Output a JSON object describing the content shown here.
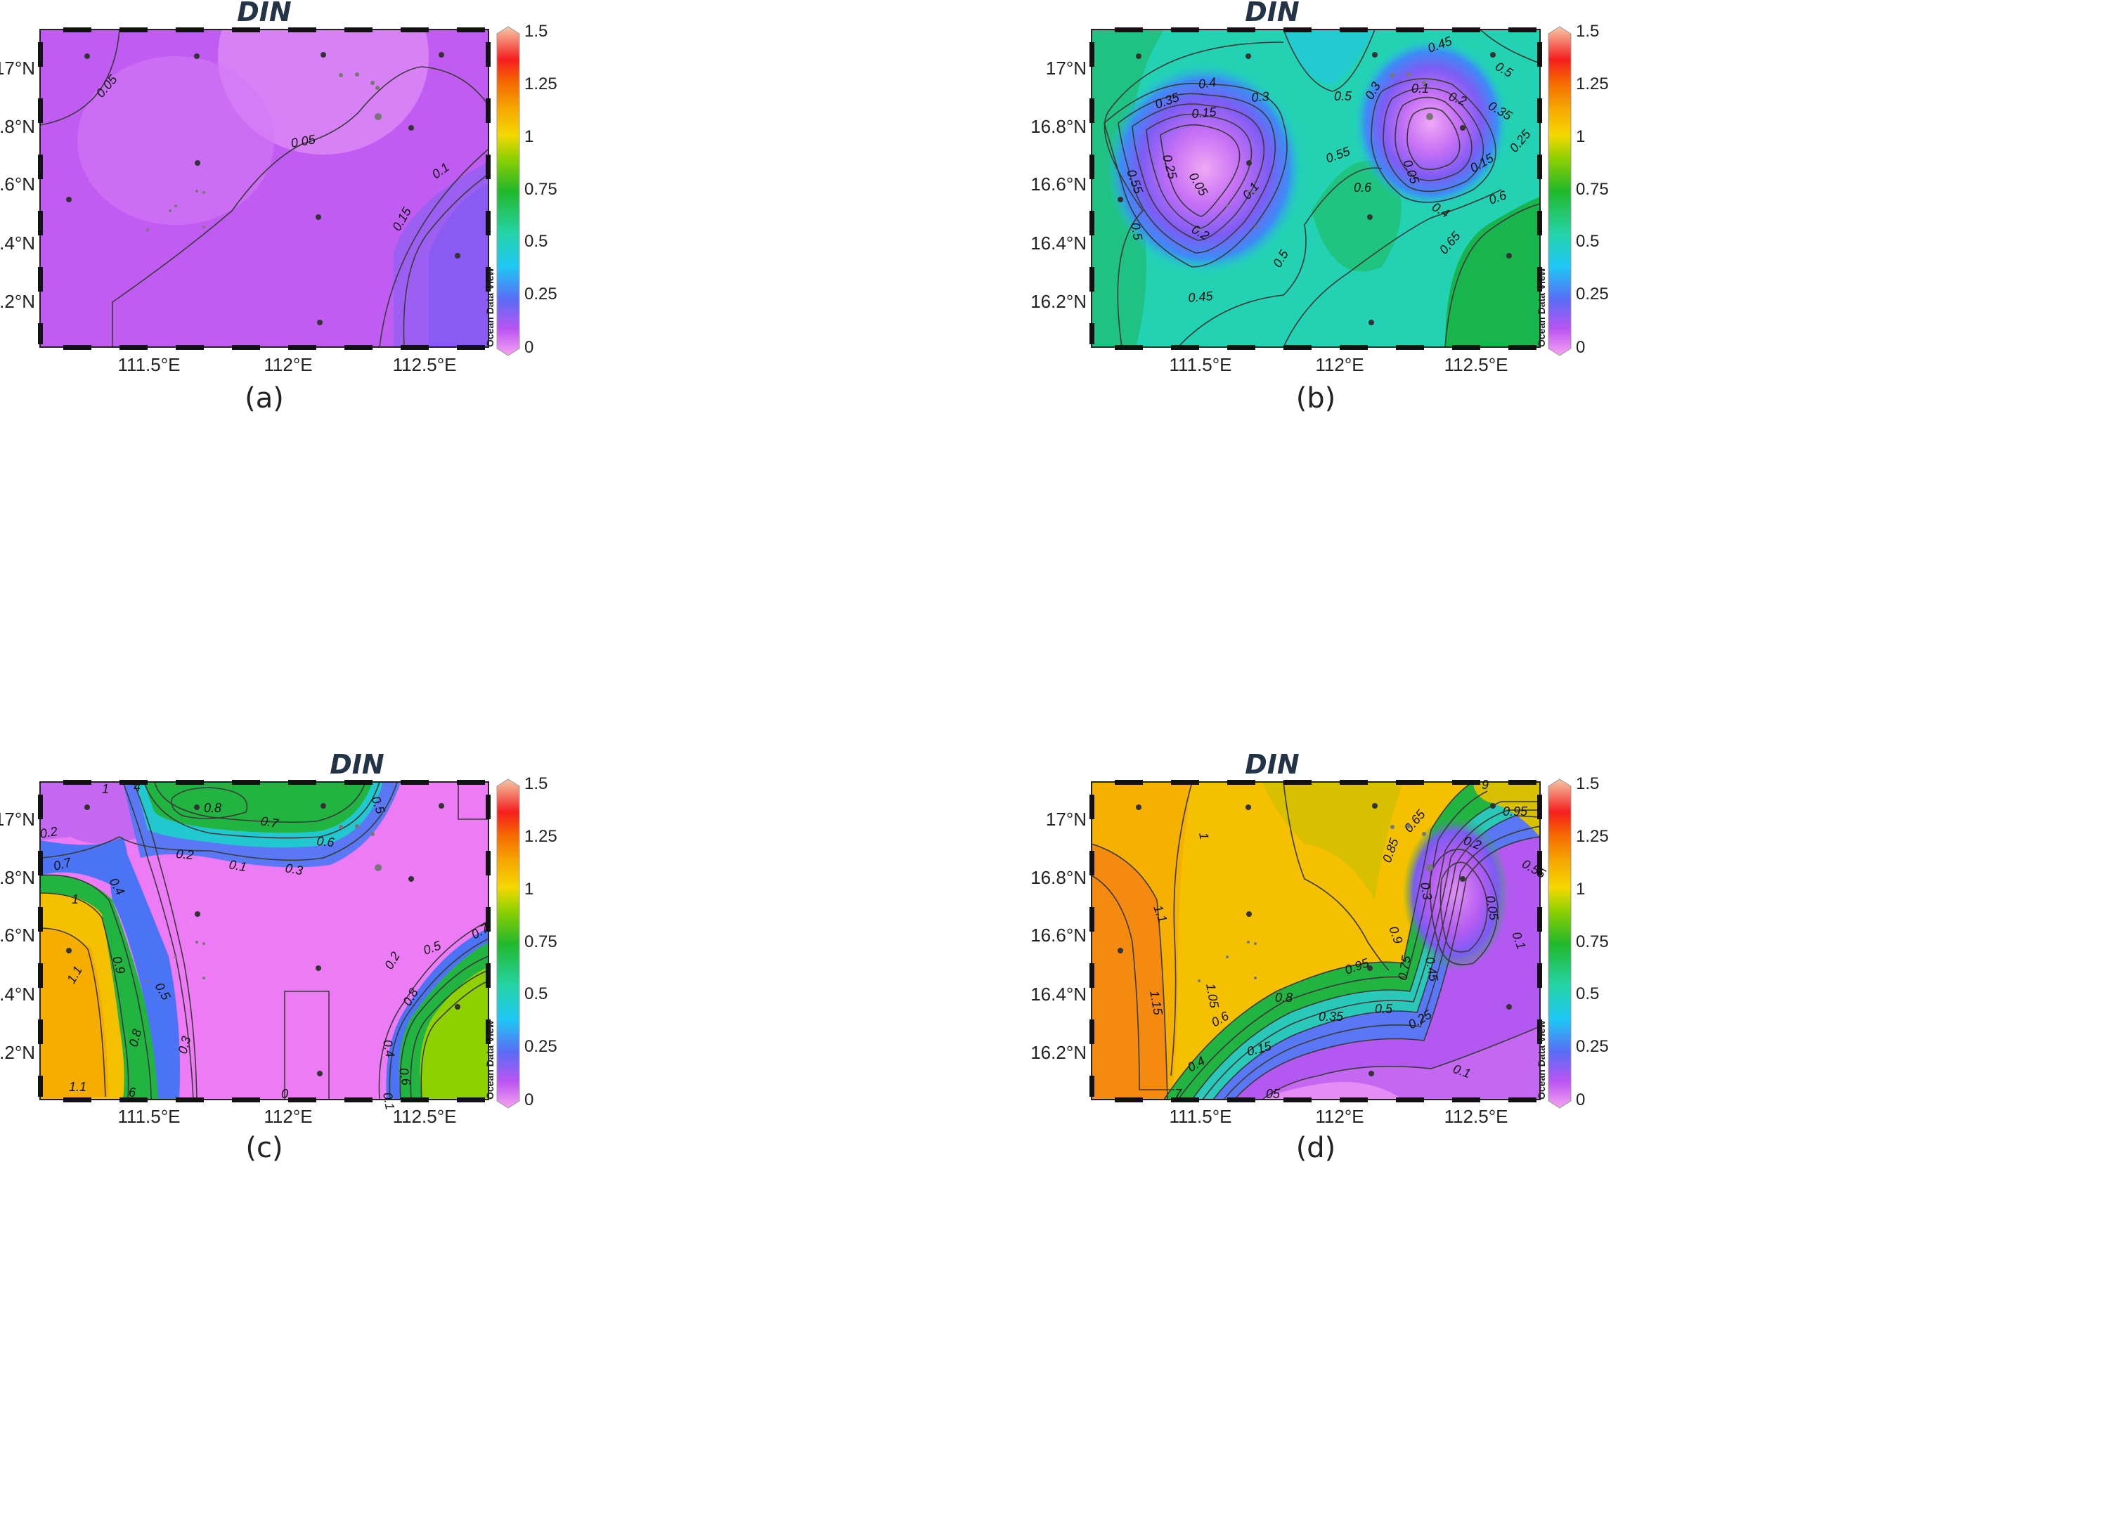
{
  "panels": [
    {
      "id": "a",
      "title": "DIN",
      "caption": "(a)",
      "lat_labels": [
        "17°N",
        "16.8°N",
        "16.6°N",
        "16.4°N",
        "16.2°N"
      ],
      "lon_labels": [
        "111.5°E",
        "112°E",
        "112.5°E"
      ],
      "colorbar_ticks": [
        "1.5",
        "1.25",
        "1",
        "0.75",
        "0.5",
        "0.25",
        "0"
      ],
      "watermark": "Ocean Data View",
      "contour_labels": [
        "0.05",
        "0.05",
        "0.1",
        "0.15"
      ],
      "base_color": "#c05cf2"
    },
    {
      "id": "b",
      "title": "DIN",
      "caption": "(b)",
      "lat_labels": [
        "17°N",
        "16.8°N",
        "16.6°N",
        "16.4°N",
        "16.2°N"
      ],
      "lon_labels": [
        "111.5°E",
        "112°E",
        "112.5°E"
      ],
      "colorbar_ticks": [
        "1.5",
        "1.25",
        "1",
        "0.75",
        "0.5",
        "0.25",
        "0"
      ],
      "watermark": "Ocean Data View",
      "contour_labels": [
        "0.45",
        "0.5",
        "0.4",
        "0.3",
        "0.35",
        "0.15",
        "0.25",
        "0.55",
        "0.05",
        "0.1",
        "0.2",
        "0.5",
        "0.45",
        "0.5",
        "0.55",
        "0.6",
        "0.5",
        "0.1",
        "0.2",
        "0.35",
        "0.3",
        "0.05",
        "0.25",
        "0.15",
        "0.4",
        "0.6",
        "0.65"
      ],
      "base_color": "#22d2b2"
    },
    {
      "id": "c",
      "title": "DIN",
      "caption": "(c)",
      "lat_labels": [
        "17°N",
        "16.8°N",
        "16.6°N",
        "16.4°N",
        "16.2°N"
      ],
      "lon_labels": [
        "111.5°E",
        "112°E",
        "112.5°E"
      ],
      "colorbar_ticks": [
        "1.5",
        "1.25",
        "1",
        "0.75",
        "0.5",
        "0.25",
        "0"
      ],
      "watermark": "Ocean Data View",
      "contour_labels": [
        "1",
        "4",
        "0.8",
        "0.7",
        "0.5",
        "0.6",
        "0.2",
        "0.2",
        "0.1",
        "0.3",
        "0.7",
        "0.4",
        "1",
        "1.1",
        "0.9",
        "0.5",
        "0.8",
        "0.3",
        "0.2",
        "0.5",
        "0.8",
        "0.7",
        "0.4",
        "0.6",
        "0.1",
        "1.1",
        "6",
        "0"
      ],
      "base_color": "#ec7bf5"
    },
    {
      "id": "d",
      "title": "DIN",
      "caption": "(d)",
      "lat_labels": [
        "17°N",
        "16.8°N",
        "16.6°N",
        "16.4°N",
        "16.2°N"
      ],
      "lon_labels": [
        "111.5°E",
        "112°E",
        "112.5°E"
      ],
      "colorbar_ticks": [
        "1.5",
        "1.25",
        "1",
        "0.75",
        "0.5",
        "0.25",
        "0"
      ],
      "watermark": "Ocean Data View",
      "contour_labels": [
        "1",
        "9",
        "0.95",
        "0.65",
        "0.85",
        "0.2",
        "0.55",
        "0.3",
        "0.05",
        "1.1",
        "0.9",
        "0.1",
        "0.45",
        "1.05",
        "1.15",
        "0.95",
        "0.75",
        "0.8",
        "0.5",
        "0.35",
        "0.25",
        "0.6",
        "0.15",
        "0.4",
        "0.1",
        "7",
        "05"
      ],
      "base_color": "#f5c000"
    }
  ],
  "colorbar_colors": [
    "#f5a3f0",
    "#bb55f2",
    "#5a6cf5",
    "#1fc8f5",
    "#25d4a8",
    "#22b82a",
    "#8fd000",
    "#f5d800",
    "#f5a800",
    "#f56a00",
    "#f51e1e",
    "#f57a7a",
    "#f5c8a8"
  ]
}
